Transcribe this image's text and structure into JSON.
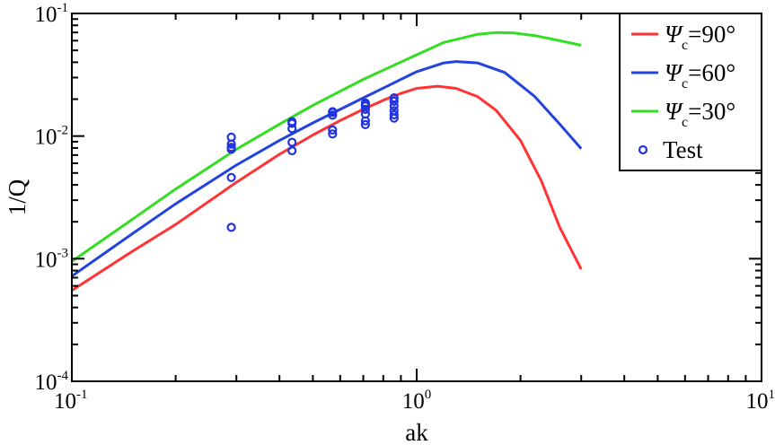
{
  "chart_data": {
    "type": "line",
    "title": "",
    "xlabel": "ak",
    "ylabel": "1/Q",
    "x_scale": "log",
    "y_scale": "log",
    "xlim": [
      0.1,
      10
    ],
    "ylim": [
      0.0001,
      0.1
    ],
    "grid": false,
    "legend_position": "top-right",
    "x_ticks": [
      {
        "value": 0.1,
        "base": "10",
        "exp": "-1"
      },
      {
        "value": 1,
        "base": "10",
        "exp": "0"
      },
      {
        "value": 10,
        "base": "10",
        "exp": "1"
      }
    ],
    "y_ticks": [
      {
        "value": 0.0001,
        "base": "10",
        "exp": "-4"
      },
      {
        "value": 0.001,
        "base": "10",
        "exp": "-3"
      },
      {
        "value": 0.01,
        "base": "10",
        "exp": "-2"
      },
      {
        "value": 0.1,
        "base": "10",
        "exp": "-1"
      }
    ],
    "series": [
      {
        "name": "Ψc=90°",
        "legend_symbol": "Ψ",
        "legend_sub": "c",
        "legend_rest": "=90°",
        "color": "#ff3333",
        "kind": "line",
        "x": [
          0.1,
          0.15,
          0.2,
          0.3,
          0.4,
          0.5,
          0.6,
          0.7,
          0.8,
          0.9,
          1.0,
          1.15,
          1.3,
          1.5,
          1.7,
          2.0,
          2.3,
          2.6,
          3.0
        ],
        "y": [
          0.00055,
          0.00115,
          0.0019,
          0.0042,
          0.0071,
          0.0102,
          0.0134,
          0.0165,
          0.0196,
          0.0223,
          0.0245,
          0.0255,
          0.0245,
          0.021,
          0.0162,
          0.0092,
          0.0043,
          0.0018,
          0.00082
        ]
      },
      {
        "name": "Ψc=60°",
        "legend_symbol": "Ψ",
        "legend_sub": "c",
        "legend_rest": "=60°",
        "color": "#2244dd",
        "kind": "line",
        "x": [
          0.1,
          0.15,
          0.2,
          0.3,
          0.4,
          0.5,
          0.6,
          0.7,
          0.8,
          1.0,
          1.2,
          1.3,
          1.5,
          1.8,
          2.2,
          2.6,
          3.0
        ],
        "y": [
          0.00072,
          0.0016,
          0.0028,
          0.0058,
          0.0092,
          0.0128,
          0.0165,
          0.0205,
          0.0246,
          0.0335,
          0.0395,
          0.0405,
          0.0395,
          0.033,
          0.021,
          0.0125,
          0.0079
        ]
      },
      {
        "name": "Ψc=30°",
        "legend_symbol": "Ψ",
        "legend_sub": "c",
        "legend_rest": "=30°",
        "color": "#33dd22",
        "kind": "line",
        "x": [
          0.1,
          0.15,
          0.2,
          0.3,
          0.4,
          0.5,
          0.6,
          0.7,
          0.8,
          1.0,
          1.2,
          1.5,
          1.7,
          1.9,
          2.2,
          2.6,
          3.0
        ],
        "y": [
          0.00095,
          0.0021,
          0.0037,
          0.0078,
          0.0125,
          0.0178,
          0.0232,
          0.029,
          0.0345,
          0.046,
          0.058,
          0.0675,
          0.07,
          0.0695,
          0.066,
          0.06,
          0.055
        ]
      },
      {
        "name": "Test",
        "legend_symbol": "",
        "legend_sub": "",
        "legend_rest": "Test",
        "color": "#2233dd",
        "kind": "scatter",
        "x": [
          0.29,
          0.29,
          0.29,
          0.29,
          0.29,
          0.29,
          0.435,
          0.435,
          0.435,
          0.435,
          0.435,
          0.57,
          0.57,
          0.57,
          0.57,
          0.57,
          0.71,
          0.71,
          0.71,
          0.71,
          0.71,
          0.71,
          0.71,
          0.86,
          0.86,
          0.86,
          0.86,
          0.86,
          0.86
        ],
        "y": [
          0.0098,
          0.0086,
          0.0081,
          0.0078,
          0.0046,
          0.0018,
          0.0127,
          0.0115,
          0.0089,
          0.0076,
          0.0131,
          0.0158,
          0.0148,
          0.0112,
          0.0104,
          0.0156,
          0.0186,
          0.0176,
          0.0165,
          0.0151,
          0.0133,
          0.0124,
          0.018,
          0.0205,
          0.0192,
          0.0176,
          0.0161,
          0.0149,
          0.014
        ]
      }
    ]
  }
}
